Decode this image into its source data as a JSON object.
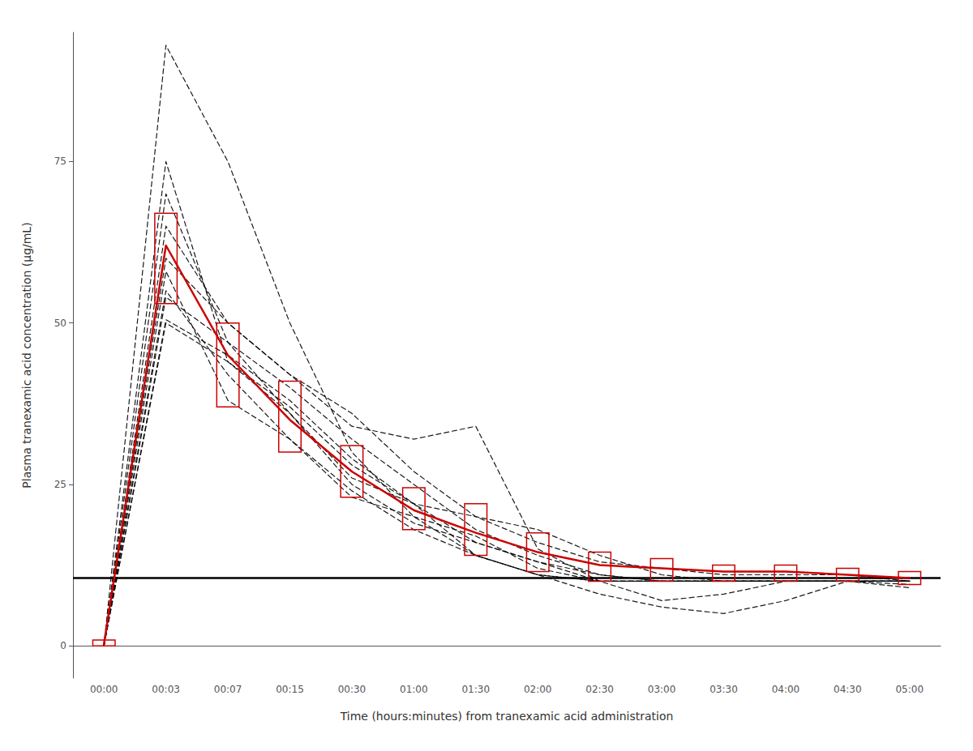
{
  "chart_data": {
    "type": "line",
    "xlabel": "Time (hours:minutes) from tranexamic acid administration",
    "ylabel": "Plasma tranexamic acid concentration (μg/mL)",
    "categories": [
      "00:00",
      "00:03",
      "00:07",
      "00:15",
      "00:30",
      "01:00",
      "01:30",
      "02:00",
      "02:30",
      "03:00",
      "03:30",
      "04:00",
      "04:30",
      "05:00"
    ],
    "ylim": [
      -5,
      95
    ],
    "yticks": [
      0,
      25,
      50,
      75
    ],
    "grid": false,
    "background_color": "#ffffff",
    "reference_line": {
      "y": 10.5,
      "color": "#000000"
    },
    "series": [
      {
        "type": "line",
        "line_style": "dashed",
        "color": "#000000",
        "values": [
          0,
          50.5,
          45.0,
          38.0,
          29.0,
          22.0,
          14.0,
          11.0,
          10.0,
          10.0,
          10.0,
          10.0,
          10.0,
          9.5
        ]
      },
      {
        "type": "line",
        "line_style": "dashed",
        "color": "#000000",
        "values": [
          0,
          54.0,
          47.0,
          40.0,
          32.0,
          25.0,
          18.0,
          14.0,
          11.0,
          10.0,
          10.0,
          10.0,
          10.0,
          10.0
        ]
      },
      {
        "type": "line",
        "line_style": "dashed",
        "color": "#000000",
        "values": [
          0,
          58.0,
          38.0,
          32.0,
          23.0,
          20.0,
          17.0,
          12.0,
          10.0,
          10.0,
          10.0,
          10.0,
          10.0,
          9.0
        ]
      },
      {
        "type": "line",
        "line_style": "dashed",
        "color": "#000000",
        "values": [
          0,
          65.0,
          50.0,
          42.0,
          36.0,
          27.0,
          20.0,
          16.0,
          13.0,
          12.0,
          11.0,
          11.0,
          11.0,
          10.0
        ]
      },
      {
        "type": "line",
        "line_style": "dashed",
        "color": "#000000",
        "values": [
          0,
          70.0,
          47.0,
          36.0,
          25.0,
          19.0,
          16.0,
          13.0,
          10.0,
          10.0,
          10.0,
          10.0,
          10.0,
          10.0
        ]
      },
      {
        "type": "line",
        "line_style": "dashed",
        "color": "#000000",
        "values": [
          0,
          75.0,
          44.0,
          36.0,
          26.0,
          22.0,
          20.0,
          18.0,
          14.0,
          11.0,
          10.0,
          10.0,
          10.0,
          10.0
        ]
      },
      {
        "type": "line",
        "line_style": "dashed",
        "color": "#000000",
        "values": [
          0,
          60.0,
          50.0,
          42.0,
          34.0,
          32.0,
          34.0,
          15.0,
          10.0,
          7.0,
          8.0,
          10.0,
          10.0,
          10.0
        ]
      },
      {
        "type": "line",
        "line_style": "dashed",
        "color": "#000000",
        "values": [
          0,
          55.0,
          42.0,
          32.0,
          24.0,
          18.0,
          14.0,
          11.0,
          10.0,
          10.0,
          10.0,
          10.0,
          10.0,
          10.0
        ]
      },
      {
        "type": "line",
        "line_style": "dashed",
        "color": "#000000",
        "values": [
          0,
          50.0,
          44.0,
          37.0,
          28.0,
          22.0,
          16.0,
          13.0,
          11.0,
          10.0,
          10.0,
          10.0,
          10.0,
          10.0
        ]
      },
      {
        "type": "line",
        "line_style": "dashed",
        "color": "#000000",
        "values": [
          0,
          93.0,
          75.0,
          50.0,
          30.0,
          20.0,
          14.0,
          11.0,
          8.0,
          6.0,
          5.0,
          7.0,
          10.0,
          10.0
        ]
      },
      {
        "type": "line",
        "line_style": "solid",
        "color": "#CC0000",
        "values": [
          0.3,
          62.0,
          45.0,
          35.0,
          27.0,
          21.0,
          17.5,
          14.5,
          12.5,
          12.0,
          11.5,
          11.5,
          11.0,
          10.5
        ]
      },
      {
        "type": "box",
        "color": "#CC0000",
        "low": [
          0.0,
          53.0,
          37.0,
          30.0,
          23.0,
          18.0,
          14.0,
          11.5,
          10.0,
          10.0,
          10.0,
          10.0,
          10.0,
          9.5
        ],
        "high": [
          0.9,
          67.0,
          50.0,
          41.0,
          31.0,
          24.5,
          22.0,
          17.5,
          14.5,
          13.5,
          12.5,
          12.5,
          12.0,
          11.5
        ]
      }
    ]
  }
}
